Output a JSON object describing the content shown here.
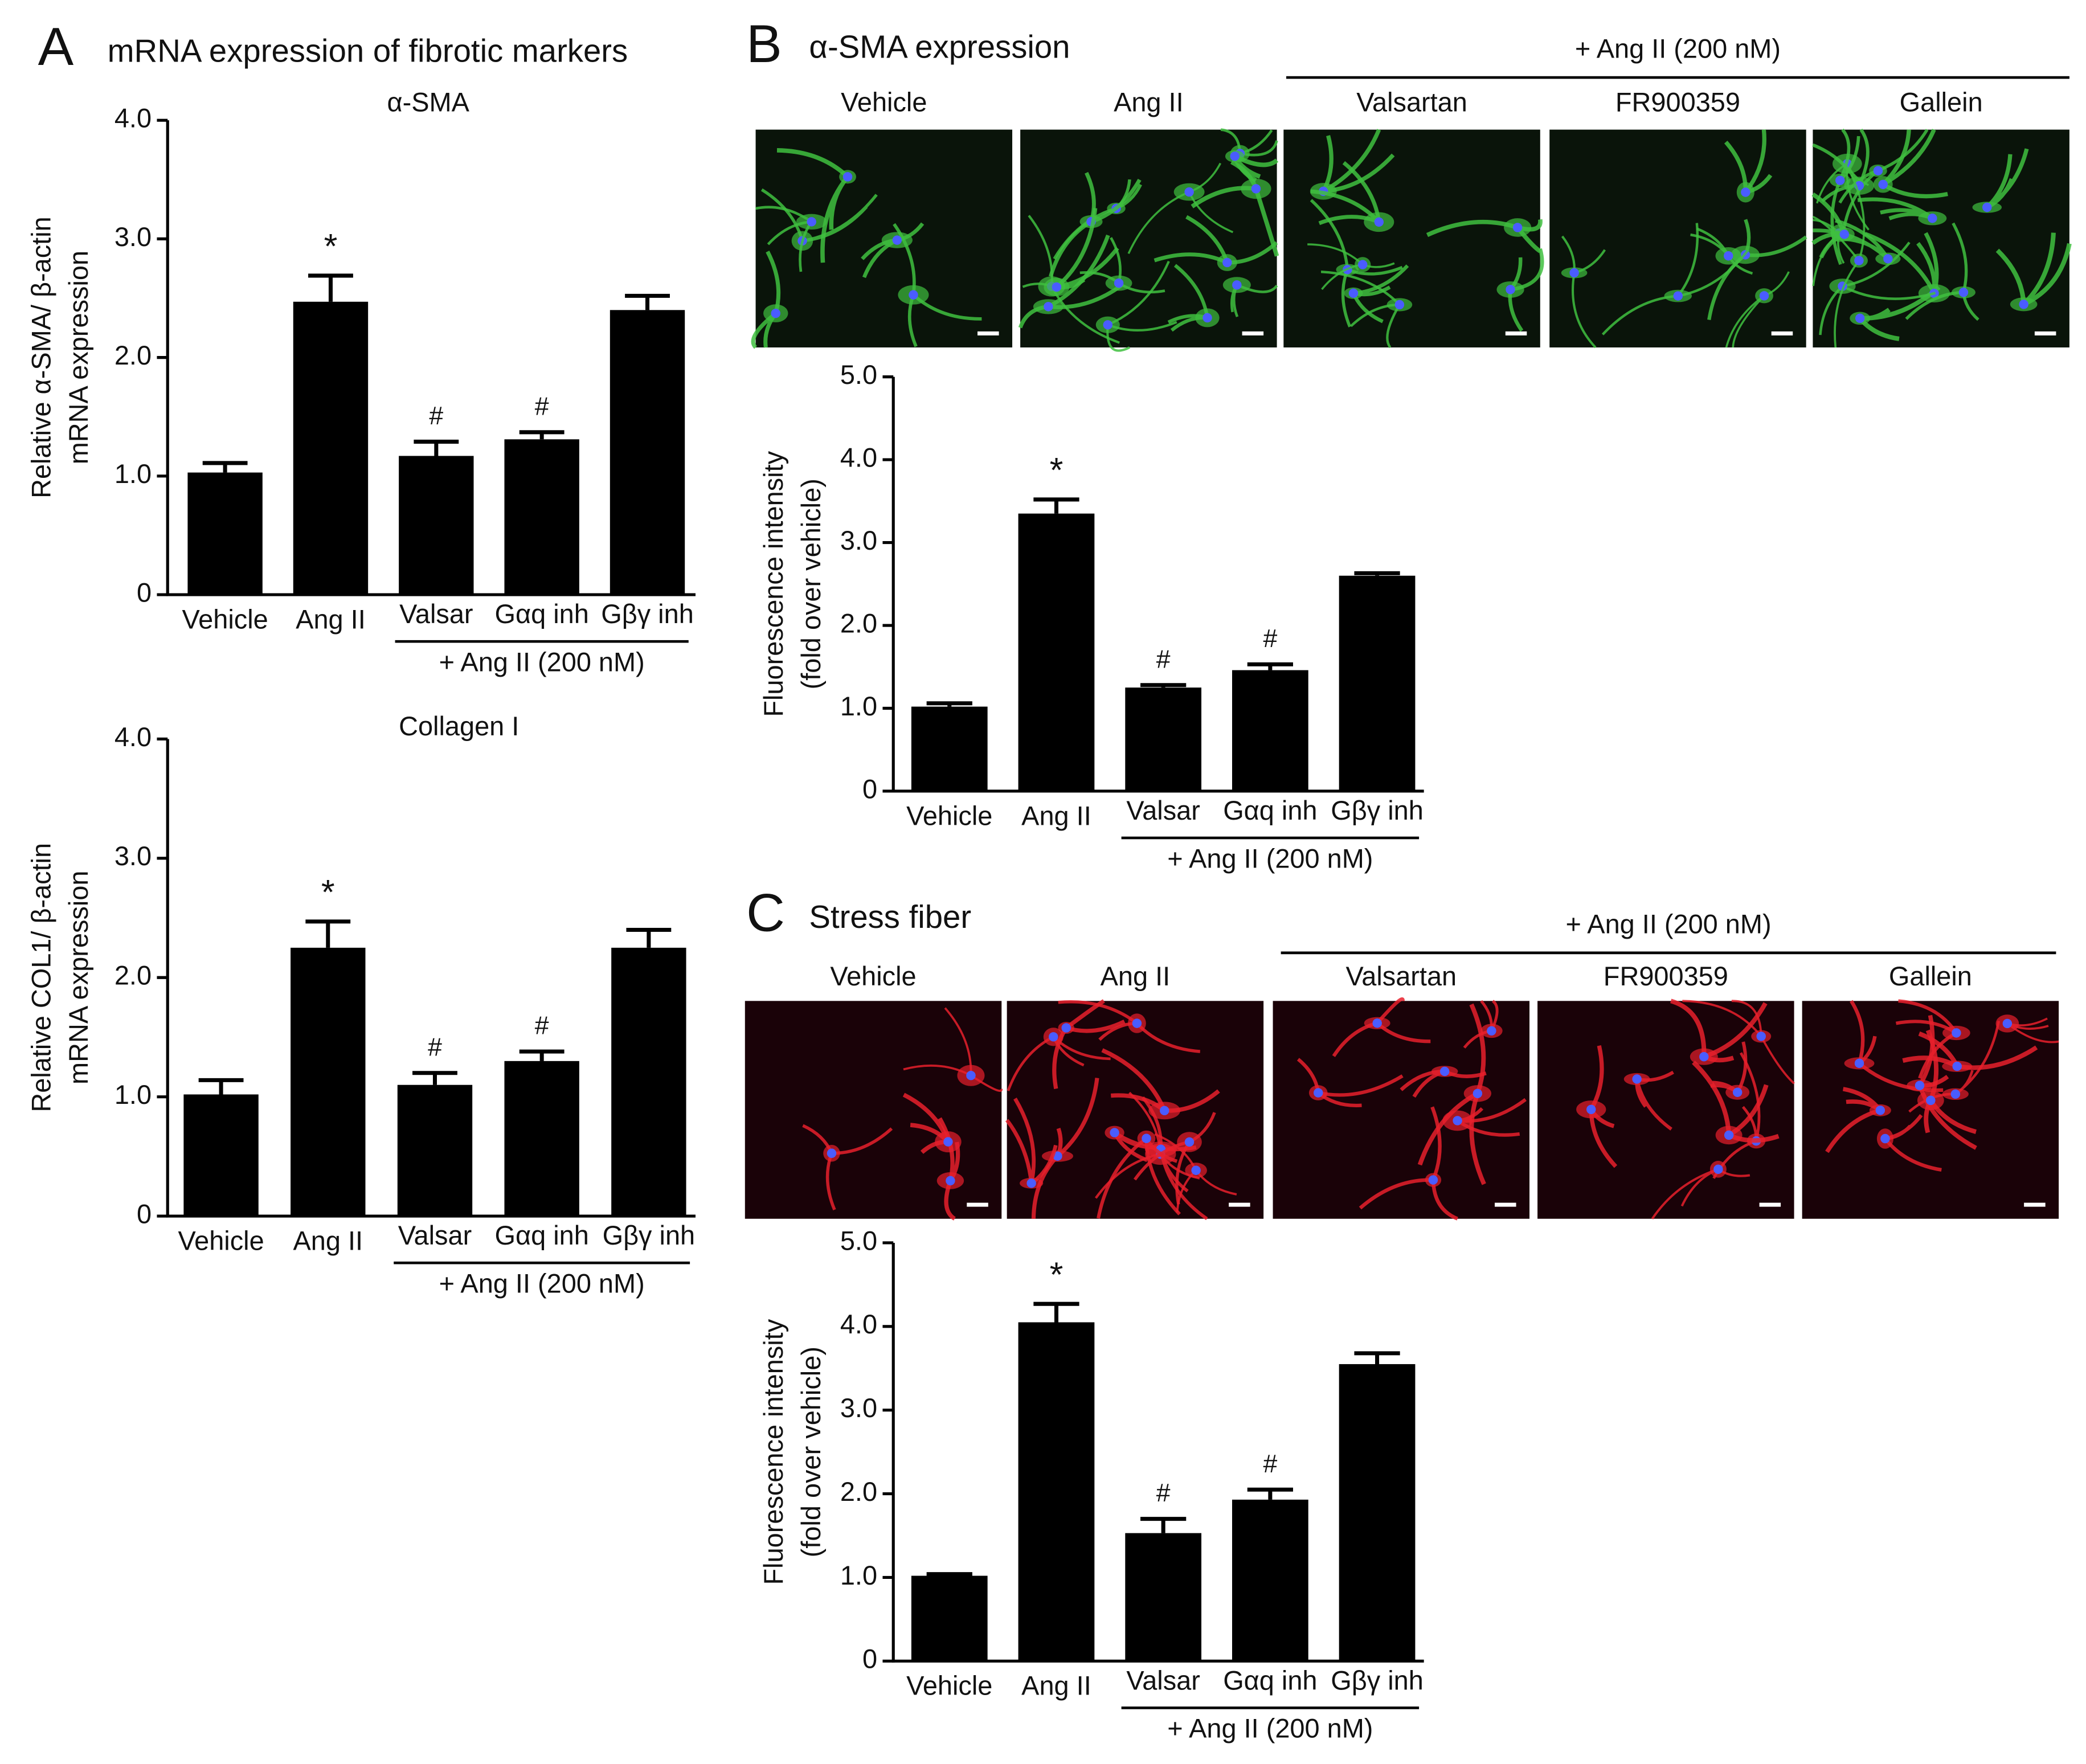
{
  "panels": [
    {
      "letter": "A",
      "title": "mRNA expression of fibrotic markers"
    },
    {
      "letter": "B",
      "title": "α-SMA expression",
      "treatment_label": "+ Ang II (200 nM)",
      "image_labels": [
        "Vehicle",
        "Ang II",
        "Valsartan",
        "FR900359",
        "Gallein"
      ]
    },
    {
      "letter": "C",
      "title": "Stress fiber",
      "treatment_label": "+ Ang II (200 nM)",
      "image_labels": [
        "Vehicle",
        "Ang II",
        "Valsartan",
        "FR900359",
        "Gallein"
      ]
    }
  ],
  "chart_data": [
    {
      "type": "bar",
      "title": "α-SMA",
      "ylabel": [
        "Relative α-SMA/ β-actin",
        "mRNA expression"
      ],
      "categories": [
        "Vehicle",
        "Ang II",
        "Valsar",
        "Gαq inh",
        "Gβγ inh"
      ],
      "values": [
        1.03,
        2.47,
        1.17,
        1.31,
        2.4
      ],
      "errors": [
        0.08,
        0.22,
        0.12,
        0.06,
        0.12
      ],
      "annotations": [
        null,
        "*",
        "#",
        "#",
        null
      ],
      "group_label": "+ Ang II (200 nM)",
      "color": "#000000",
      "ylim": [
        0,
        4
      ],
      "yticks": [
        0,
        {
          "value": 1,
          "label": "1.0"
        },
        {
          "value": 2,
          "label": "2.0"
        },
        {
          "value": 3,
          "label": "3.0"
        },
        {
          "value": 4,
          "label": "4.0"
        }
      ]
    },
    {
      "type": "bar",
      "title": "Collagen I",
      "ylabel": [
        "Relative COL1/ β-actin",
        "mRNA expression"
      ],
      "categories": [
        "Vehicle",
        "Ang II",
        "Valsar",
        "Gαq inh",
        "Gβγ inh"
      ],
      "values": [
        1.02,
        2.25,
        1.1,
        1.3,
        2.25
      ],
      "errors": [
        0.12,
        0.22,
        0.1,
        0.08,
        0.15
      ],
      "annotations": [
        null,
        "*",
        "#",
        "#",
        null
      ],
      "group_label": "+ Ang II (200 nM)",
      "color": "#000000",
      "ylim": [
        0,
        4
      ],
      "yticks": [
        0,
        {
          "value": 1,
          "label": "1.0"
        },
        {
          "value": 2,
          "label": "2.0"
        },
        {
          "value": 3,
          "label": "3.0"
        },
        {
          "value": 4,
          "label": "4.0"
        }
      ]
    },
    {
      "type": "bar",
      "ylabel": [
        "Fluorescence  intensity",
        "(fold over vehicle)"
      ],
      "categories": [
        "Vehicle",
        "Ang II",
        "Valsar",
        "Gαq inh",
        "Gβγ inh"
      ],
      "values": [
        1.02,
        3.35,
        1.25,
        1.46,
        2.6
      ],
      "errors": [
        0.04,
        0.17,
        0.03,
        0.07,
        0.03
      ],
      "annotations": [
        null,
        "*",
        "#",
        "#",
        null
      ],
      "group_label": "+ Ang II (200 nM)",
      "color": "#000000",
      "ylim": [
        0,
        5
      ],
      "yticks": [
        0,
        {
          "value": 1,
          "label": "1.0"
        },
        {
          "value": 2,
          "label": "2.0"
        },
        {
          "value": 3,
          "label": "3.0"
        },
        {
          "value": 4,
          "label": "4.0"
        },
        {
          "value": 5,
          "label": "5.0"
        }
      ]
    },
    {
      "type": "bar",
      "ylabel": [
        "Fluorescence  intensity",
        "(fold over vehicle)"
      ],
      "categories": [
        "Vehicle",
        "Ang II",
        "Valsar",
        "Gαq inh",
        "Gβγ inh"
      ],
      "values": [
        1.02,
        4.05,
        1.53,
        1.93,
        3.55
      ],
      "errors": [
        0.02,
        0.22,
        0.17,
        0.12,
        0.13
      ],
      "annotations": [
        null,
        "*",
        "#",
        "#",
        null
      ],
      "group_label": "+ Ang II (200 nM)",
      "color": "#000000",
      "ylim": [
        0,
        5
      ],
      "yticks": [
        0,
        {
          "value": 1,
          "label": "1.0"
        },
        {
          "value": 2,
          "label": "2.0"
        },
        {
          "value": 3,
          "label": "3.0"
        },
        {
          "value": 4,
          "label": "4.0"
        },
        {
          "value": 5,
          "label": "5.0"
        }
      ]
    }
  ]
}
